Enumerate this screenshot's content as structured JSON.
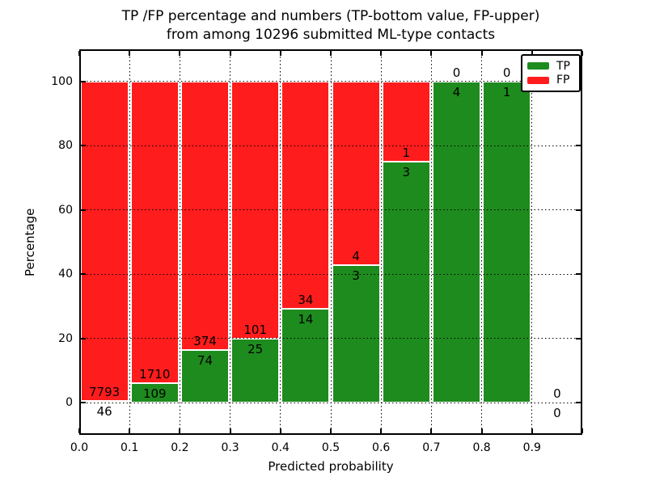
{
  "title": {
    "line1": "TP /FP percentage and numbers (TP-bottom value, FP-upper)",
    "line2": "from among 10296 submitted ML-type contacts"
  },
  "chart_data": {
    "type": "bar",
    "stacked": true,
    "title": "TP /FP percentage and numbers (TP-bottom value, FP-upper) from among 10296 submitted ML-type contacts",
    "xlabel": "Predicted probability",
    "ylabel": "Percentage",
    "xlim": [
      0.0,
      1.0
    ],
    "ylim": [
      -10,
      110
    ],
    "grid": "dotted",
    "legend_position": "upper-right",
    "bin_edges": [
      0.0,
      0.1,
      0.2,
      0.3,
      0.4,
      0.5,
      0.6,
      0.7,
      0.8,
      0.9,
      1.0
    ],
    "xticks": [
      "0.0",
      "0.1",
      "0.2",
      "0.3",
      "0.4",
      "0.5",
      "0.6",
      "0.7",
      "0.8",
      "0.9"
    ],
    "yticks": [
      0,
      20,
      40,
      60,
      80,
      100
    ],
    "series": [
      {
        "name": "TP",
        "color": "#1e8b1e",
        "position": "bottom",
        "counts": [
          46,
          109,
          74,
          25,
          14,
          3,
          3,
          4,
          1,
          0
        ]
      },
      {
        "name": "FP",
        "color": "#ff1c1c",
        "position": "top",
        "counts": [
          7793,
          1710,
          374,
          101,
          34,
          4,
          1,
          0,
          0,
          0
        ]
      }
    ],
    "tp_percent_by_bin": [
      0.59,
      5.99,
      16.52,
      19.84,
      29.17,
      42.86,
      75.0,
      100.0,
      100.0,
      null
    ],
    "total_contacts": 10296
  },
  "colors": {
    "tp": "#1e8b1e",
    "fp": "#ff1c1c",
    "grid": "#000000",
    "background": "#ffffff"
  }
}
